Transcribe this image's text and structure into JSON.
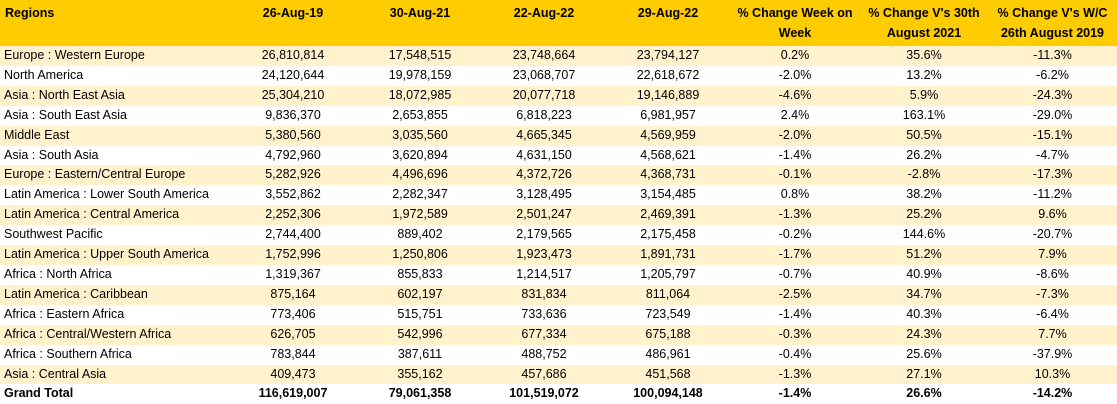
{
  "table": {
    "headers": [
      "Regions",
      "26-Aug-19",
      "30-Aug-21",
      "22-Aug-22",
      "29-Aug-22",
      "% Change Week on Week",
      "% Change V's 30th August 2021",
      "% Change V's W/C 26th August 2019"
    ],
    "rows": [
      [
        "Europe : Western Europe",
        "26,810,814",
        "17,548,515",
        "23,748,664",
        "23,794,127",
        "0.2%",
        "35.6%",
        "-11.3%"
      ],
      [
        "North America",
        "24,120,644",
        "19,978,159",
        "23,068,707",
        "22,618,672",
        "-2.0%",
        "13.2%",
        "-6.2%"
      ],
      [
        "Asia : North East Asia",
        "25,304,210",
        "18,072,985",
        "20,077,718",
        "19,146,889",
        "-4.6%",
        "5.9%",
        "-24.3%"
      ],
      [
        "Asia : South East Asia",
        "9,836,370",
        "2,653,855",
        "6,818,223",
        "6,981,957",
        "2.4%",
        "163.1%",
        "-29.0%"
      ],
      [
        "Middle East",
        "5,380,560",
        "3,035,560",
        "4,665,345",
        "4,569,959",
        "-2.0%",
        "50.5%",
        "-15.1%"
      ],
      [
        "Asia : South Asia",
        "4,792,960",
        "3,620,894",
        "4,631,150",
        "4,568,621",
        "-1.4%",
        "26.2%",
        "-4.7%"
      ],
      [
        "Europe : Eastern/Central Europe",
        "5,282,926",
        "4,496,696",
        "4,372,726",
        "4,368,731",
        "-0.1%",
        "-2.8%",
        "-17.3%"
      ],
      [
        "Latin America : Lower South America",
        "3,552,862",
        "2,282,347",
        "3,128,495",
        "3,154,485",
        "0.8%",
        "38.2%",
        "-11.2%"
      ],
      [
        "Latin America : Central America",
        "2,252,306",
        "1,972,589",
        "2,501,247",
        "2,469,391",
        "-1.3%",
        "25.2%",
        "9.6%"
      ],
      [
        "Southwest Pacific",
        "2,744,400",
        "889,402",
        "2,179,565",
        "2,175,458",
        "-0.2%",
        "144.6%",
        "-20.7%"
      ],
      [
        "Latin America : Upper South America",
        "1,752,996",
        "1,250,806",
        "1,923,473",
        "1,891,731",
        "-1.7%",
        "51.2%",
        "7.9%"
      ],
      [
        "Africa : North Africa",
        "1,319,367",
        "855,833",
        "1,214,517",
        "1,205,797",
        "-0.7%",
        "40.9%",
        "-8.6%"
      ],
      [
        "Latin America : Caribbean",
        "875,164",
        "602,197",
        "831,834",
        "811,064",
        "-2.5%",
        "34.7%",
        "-7.3%"
      ],
      [
        "Africa : Eastern Africa",
        "773,406",
        "515,751",
        "733,636",
        "723,549",
        "-1.4%",
        "40.3%",
        "-6.4%"
      ],
      [
        "Africa : Central/Western Africa",
        "626,705",
        "542,996",
        "677,334",
        "675,188",
        "-0.3%",
        "24.3%",
        "7.7%"
      ],
      [
        "Africa : Southern Africa",
        "783,844",
        "387,611",
        "488,752",
        "486,961",
        "-0.4%",
        "25.6%",
        "-37.9%"
      ],
      [
        "Asia : Central Asia",
        "409,473",
        "355,162",
        "457,686",
        "451,568",
        "-1.3%",
        "27.1%",
        "10.3%"
      ]
    ],
    "total": [
      "Grand Total",
      "116,619,007",
      "79,061,358",
      "101,519,072",
      "100,094,148",
      "-1.4%",
      "26.6%",
      "-14.2%"
    ]
  },
  "colors": {
    "header_bg": "#ffcc00",
    "band_bg": "#fff2cc",
    "plain_bg": "#ffffff"
  }
}
